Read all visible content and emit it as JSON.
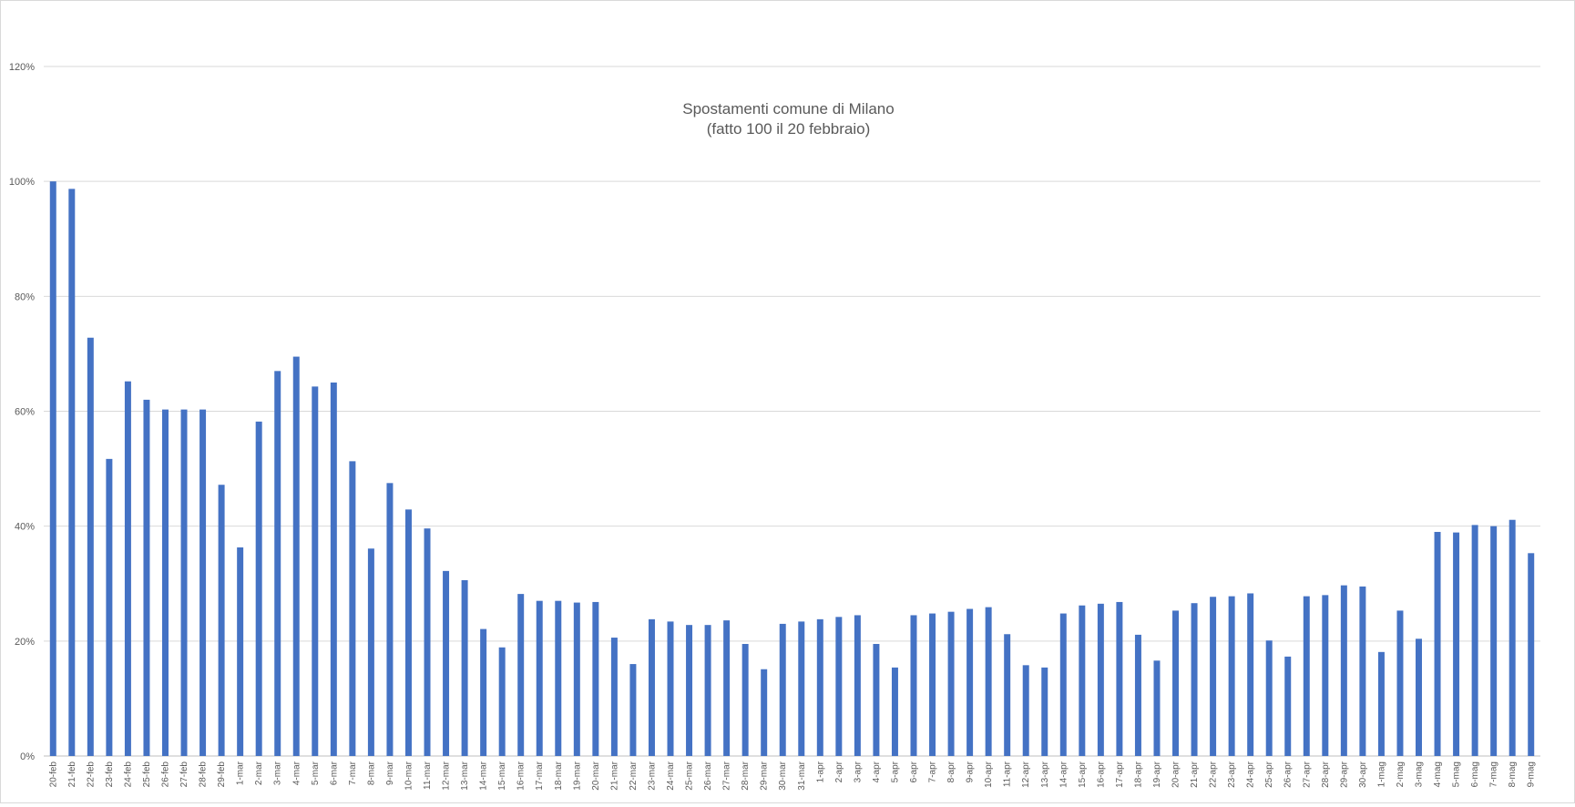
{
  "chart_data": {
    "type": "bar",
    "title": "Spostamenti comune di Milano",
    "subtitle": "(fatto 100 il 20 febbraio)",
    "xlabel": "",
    "ylabel": "",
    "ylim": [
      0,
      120
    ],
    "y_ticks": [
      "0%",
      "20%",
      "40%",
      "60%",
      "80%",
      "100%",
      "120%"
    ],
    "y_tick_values": [
      0,
      20,
      40,
      60,
      80,
      100,
      120
    ],
    "grid": true,
    "legend": "none",
    "bar_color": "#4472c4",
    "categories": [
      "20-feb",
      "21-feb",
      "22-feb",
      "23-feb",
      "24-feb",
      "25-feb",
      "26-feb",
      "27-feb",
      "28-feb",
      "29-feb",
      "1-mar",
      "2-mar",
      "3-mar",
      "4-mar",
      "5-mar",
      "6-mar",
      "7-mar",
      "8-mar",
      "9-mar",
      "10-mar",
      "11-mar",
      "12-mar",
      "13-mar",
      "14-mar",
      "15-mar",
      "16-mar",
      "17-mar",
      "18-mar",
      "19-mar",
      "20-mar",
      "21-mar",
      "22-mar",
      "23-mar",
      "24-mar",
      "25-mar",
      "26-mar",
      "27-mar",
      "28-mar",
      "29-mar",
      "30-mar",
      "31-mar",
      "1-apr",
      "2-apr",
      "3-apr",
      "4-apr",
      "5-apr",
      "6-apr",
      "7-apr",
      "8-apr",
      "9-apr",
      "10-apr",
      "11-apr",
      "12-apr",
      "13-apr",
      "14-apr",
      "15-apr",
      "16-apr",
      "17-apr",
      "18-apr",
      "19-apr",
      "20-apr",
      "21-apr",
      "22-apr",
      "23-apr",
      "24-apr",
      "25-apr",
      "26-apr",
      "27-apr",
      "28-apr",
      "29-apr",
      "30-apr",
      "1-mag",
      "2-mag",
      "3-mag",
      "4-mag",
      "5-mag",
      "6-mag",
      "7-mag",
      "8-mag",
      "9-mag"
    ],
    "values": [
      100,
      98.7,
      72.8,
      51.7,
      65.2,
      62.0,
      60.3,
      60.3,
      60.3,
      47.2,
      36.3,
      58.2,
      67.0,
      69.5,
      64.3,
      65.0,
      51.3,
      36.1,
      47.5,
      42.9,
      39.6,
      32.2,
      30.6,
      22.1,
      18.9,
      28.2,
      27.0,
      27.0,
      26.7,
      26.8,
      20.6,
      16.0,
      23.8,
      23.4,
      22.8,
      22.8,
      23.6,
      19.5,
      15.1,
      23.0,
      23.4,
      23.8,
      24.2,
      24.5,
      19.5,
      15.4,
      24.5,
      24.8,
      25.1,
      25.6,
      25.9,
      21.2,
      15.8,
      15.4,
      24.8,
      26.2,
      26.5,
      26.8,
      21.1,
      16.6,
      25.3,
      26.6,
      27.7,
      27.8,
      28.3,
      20.1,
      17.3,
      27.8,
      28.0,
      29.7,
      29.5,
      18.1,
      25.3,
      20.4,
      39.0,
      38.9,
      40.2,
      40.0,
      41.1,
      35.3
    ]
  }
}
